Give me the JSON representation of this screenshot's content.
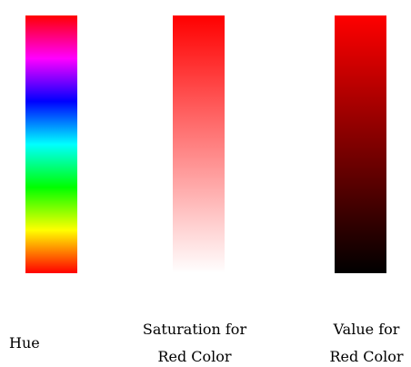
{
  "strips": [
    {
      "id": "hue",
      "colors": [
        "#ff0000",
        "#ff00ff",
        "#0000ff",
        "#00ffff",
        "#00ff00",
        "#ffff00",
        "#ff0000"
      ]
    },
    {
      "id": "saturation",
      "colors": [
        "#ff0000",
        "#ffffff"
      ]
    },
    {
      "id": "value",
      "colors": [
        "#ff0000",
        "#000000"
      ]
    }
  ],
  "labels": {
    "hue": "Hue",
    "saturation_line1": "Saturation for",
    "saturation_line2": "Red Color",
    "value_line1": "Value for",
    "value_line2": "Red Color"
  }
}
